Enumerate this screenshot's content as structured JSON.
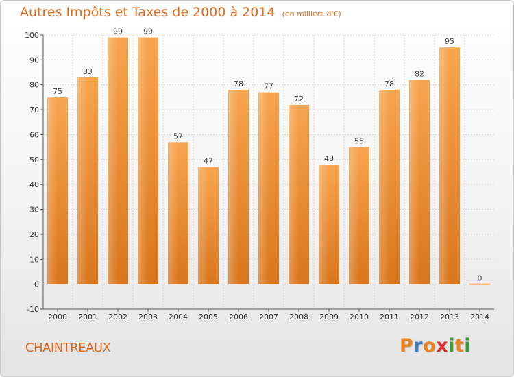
{
  "chart_data": {
    "type": "bar",
    "title": "Autres Impôts et Taxes de 2000 à 2014",
    "subtitle": "(en milliers d'€)",
    "categories": [
      "2000",
      "2001",
      "2002",
      "2003",
      "2004",
      "2005",
      "2006",
      "2007",
      "2008",
      "2009",
      "2010",
      "2011",
      "2012",
      "2013",
      "2014"
    ],
    "values": [
      75,
      83,
      99,
      99,
      57,
      47,
      78,
      77,
      72,
      48,
      55,
      78,
      82,
      95,
      0
    ],
    "ylim": [
      -10,
      100
    ],
    "yticks": [
      -10,
      0,
      10,
      20,
      30,
      40,
      50,
      60,
      70,
      80,
      90,
      100
    ],
    "xlabel": "",
    "ylabel": "",
    "grid": true,
    "bar_color_light": "#f7a54f",
    "bar_color_dark": "#d9761c"
  },
  "footer": {
    "commune": "CHAINTREAUX",
    "logo_letters": [
      "P",
      "r",
      "o",
      "x",
      "i",
      "t",
      "i"
    ],
    "logo_colors": [
      "#e8821e",
      "#3d7fc4",
      "#e8821e",
      "#d62f2f",
      "#3d9a3a",
      "#e8821e",
      "#3d9a3a"
    ]
  },
  "colors": {
    "accent": "#e06a1c"
  }
}
